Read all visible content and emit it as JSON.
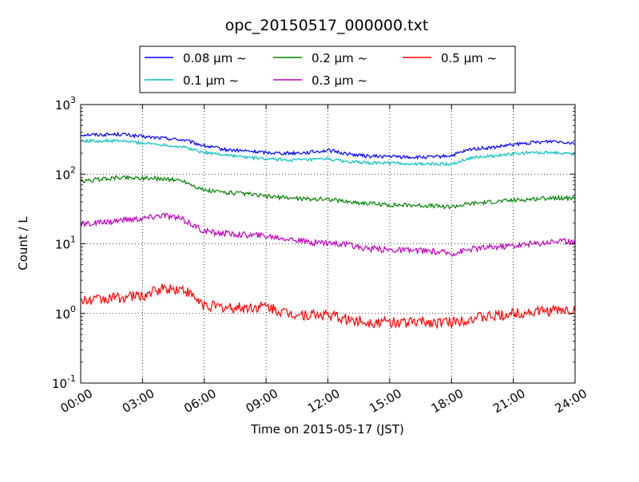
{
  "chart_data": {
    "type": "line",
    "title": "opc_20150517_000000.txt",
    "xlabel": "Time on 2015-05-17 (JST)",
    "ylabel": "Count / L",
    "yscale": "log",
    "ylim": [
      0.1,
      1000
    ],
    "xlim": [
      "00:00",
      "24:00"
    ],
    "x_ticks": [
      "00:00",
      "03:00",
      "06:00",
      "09:00",
      "12:00",
      "15:00",
      "18:00",
      "21:00",
      "24:00"
    ],
    "y_ticks": [
      {
        "value": 0.1,
        "base": "10",
        "exp": "-1"
      },
      {
        "value": 1,
        "base": "10",
        "exp": "0"
      },
      {
        "value": 10,
        "base": "10",
        "exp": "1"
      },
      {
        "value": 100,
        "base": "10",
        "exp": "2"
      },
      {
        "value": 1000,
        "base": "10",
        "exp": "3"
      }
    ],
    "grid": true,
    "legend_position": "top, above plot",
    "x_hours": [
      0,
      1,
      2,
      3,
      4,
      5,
      6,
      7,
      8,
      9,
      10,
      11,
      12,
      13,
      14,
      15,
      16,
      17,
      18,
      19,
      20,
      21,
      22,
      23,
      24
    ],
    "series": [
      {
        "name": "0.08 μm ~",
        "color": "#0000ff",
        "values": [
          370,
          370,
          375,
          345,
          330,
          310,
          255,
          225,
          215,
          205,
          200,
          205,
          220,
          195,
          180,
          180,
          175,
          175,
          185,
          230,
          240,
          265,
          285,
          300,
          280
        ]
      },
      {
        "name": "0.1 μm ~",
        "color": "#00bfbf",
        "values": [
          300,
          300,
          300,
          280,
          265,
          245,
          205,
          190,
          175,
          165,
          160,
          160,
          165,
          150,
          145,
          145,
          140,
          140,
          140,
          175,
          180,
          195,
          205,
          205,
          195
        ]
      },
      {
        "name": "0.2 μm ~",
        "color": "#008000",
        "values": [
          78,
          85,
          90,
          88,
          86,
          80,
          58,
          55,
          52,
          48,
          46,
          44,
          44,
          40,
          38,
          36,
          36,
          35,
          34,
          38,
          40,
          42,
          44,
          46,
          45
        ]
      },
      {
        "name": "0.3 μm ~",
        "color": "#bf00bf",
        "values": [
          19,
          20,
          22,
          23,
          26,
          22,
          15,
          14,
          13.5,
          13,
          12,
          10.5,
          10.5,
          9.5,
          8.5,
          8.2,
          8,
          7.8,
          7.3,
          8.5,
          9,
          9.5,
          10,
          11,
          10.5
        ]
      },
      {
        "name": "0.5 μm ~",
        "color": "#ff0000",
        "values": [
          1.5,
          1.6,
          1.7,
          1.8,
          2.3,
          2.2,
          1.3,
          1.2,
          1.2,
          1.25,
          1.0,
          0.95,
          0.95,
          0.8,
          0.75,
          0.75,
          0.75,
          0.75,
          0.75,
          0.85,
          0.9,
          1.0,
          1.05,
          1.1,
          1.1
        ]
      }
    ]
  }
}
